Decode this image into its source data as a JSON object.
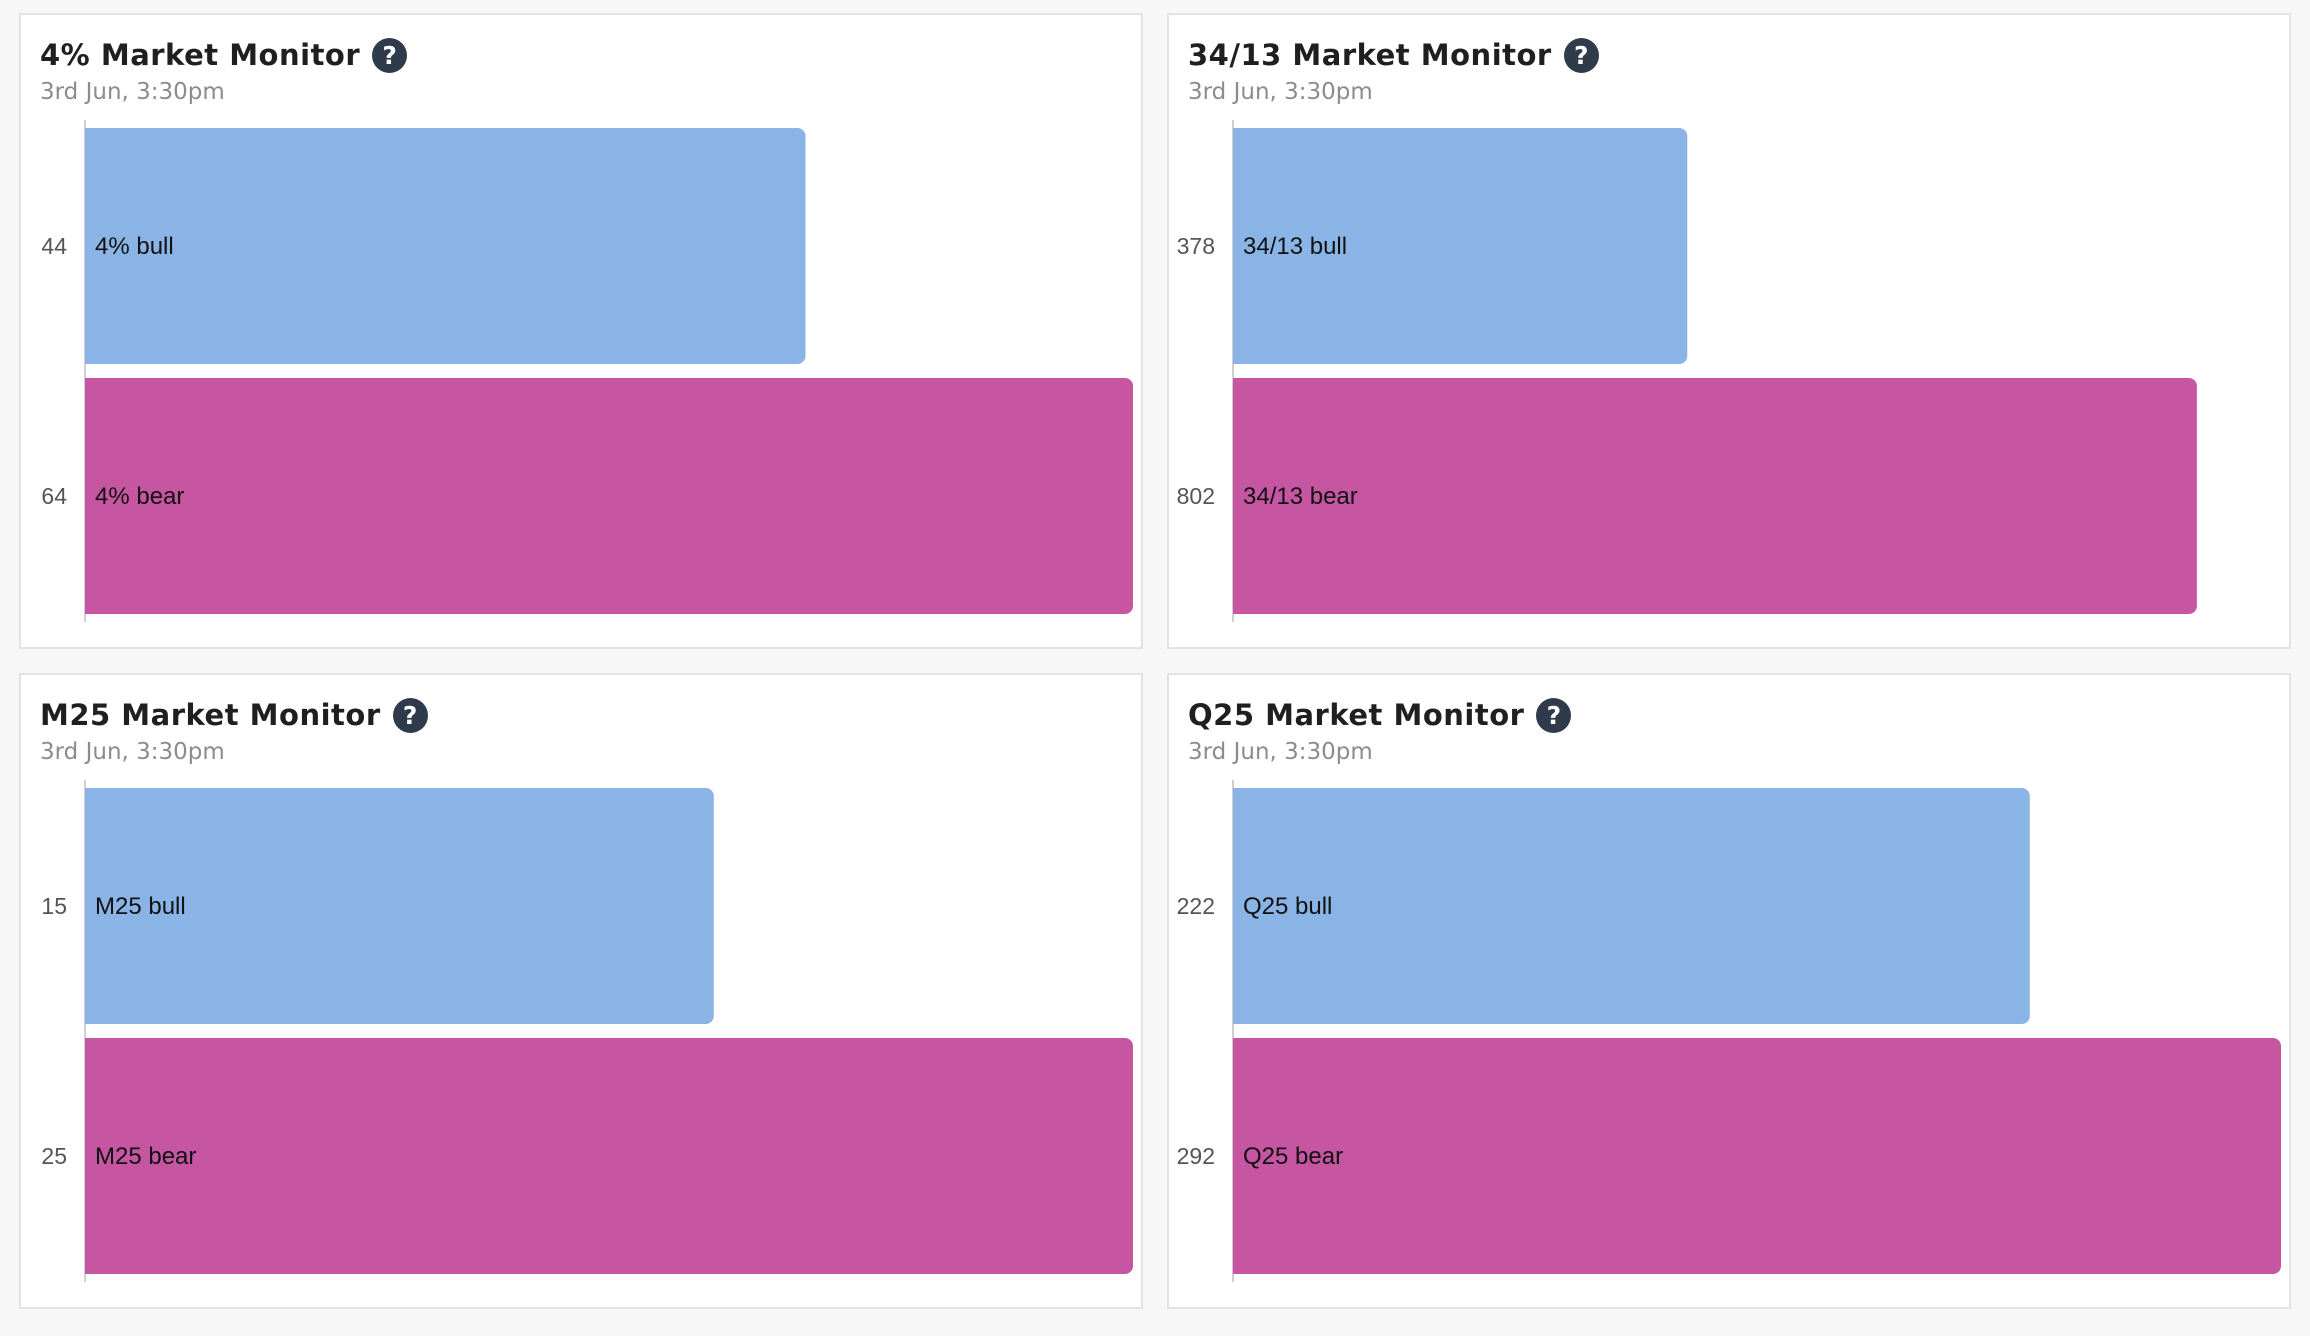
{
  "colors": {
    "bull": "#8ab4e6",
    "bear": "#c656a2",
    "help_icon": "#2f3a4a"
  },
  "icons": {
    "help": "question-circle-icon"
  },
  "help_glyph": "?",
  "panels": [
    {
      "title": "4% Market Monitor",
      "timestamp": "3rd Jun, 3:30pm",
      "chart_data": {
        "type": "bar",
        "orientation": "horizontal",
        "categories": [
          "4% bull",
          "4% bear"
        ],
        "values": [
          44,
          64
        ],
        "xlim": [
          0,
          64
        ],
        "grid": false,
        "legend": "none"
      }
    },
    {
      "title": "34/13 Market Monitor",
      "timestamp": "3rd Jun, 3:30pm",
      "chart_data": {
        "type": "bar",
        "orientation": "horizontal",
        "categories": [
          "34/13 bull",
          "34/13 bear"
        ],
        "values": [
          378,
          802
        ],
        "xlim": [
          0,
          872
        ],
        "grid": false,
        "legend": "none"
      }
    },
    {
      "title": "M25 Market Monitor",
      "timestamp": "3rd Jun, 3:30pm",
      "chart_data": {
        "type": "bar",
        "orientation": "horizontal",
        "categories": [
          "M25 bull",
          "M25 bear"
        ],
        "values": [
          15,
          25
        ],
        "xlim": [
          0,
          25
        ],
        "grid": false,
        "legend": "none"
      }
    },
    {
      "title": "Q25 Market Monitor",
      "timestamp": "3rd Jun, 3:30pm",
      "chart_data": {
        "type": "bar",
        "orientation": "horizontal",
        "categories": [
          "Q25 bull",
          "Q25 bear"
        ],
        "values": [
          222,
          292
        ],
        "xlim": [
          0,
          292
        ],
        "grid": false,
        "legend": "none"
      }
    }
  ]
}
